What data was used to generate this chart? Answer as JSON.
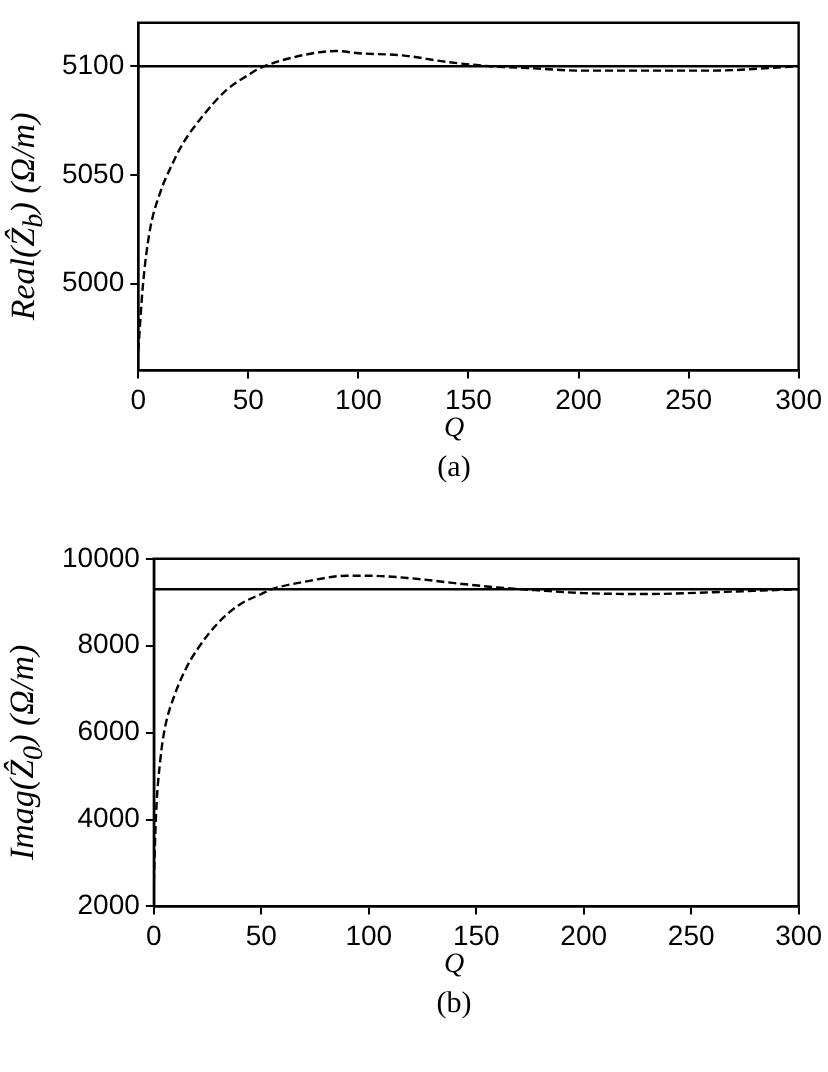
{
  "chart_data": [
    {
      "type": "line",
      "xlabel": "Q",
      "ylabel": "Real(Ẑ$_{b}$)  (Ω/m)",
      "annotations": [
        "(a)"
      ],
      "x": [
        0,
        2,
        5,
        10,
        15,
        20,
        30,
        40,
        50,
        55,
        70,
        90,
        100,
        120,
        140,
        160,
        180,
        200,
        230,
        260,
        300
      ],
      "series": [
        {
          "color": "#000000",
          "line_style": "dashed",
          "values": [
            4969,
            4998,
            5023,
            5042,
            5054,
            5064,
            5078,
            5089,
            5096,
            5099,
            5104,
            5107,
            5106,
            5105,
            5102,
            5100,
            5099,
            5098,
            5098,
            5098,
            5100
          ]
        }
      ],
      "ref_lines": [
        {
          "axis": "y",
          "value": 5100,
          "color": "#000000",
          "line_style": "solid"
        }
      ],
      "xlim": [
        0,
        300
      ],
      "xticks": [
        0,
        50,
        100,
        150,
        200,
        250,
        300
      ],
      "ylim": [
        4960,
        5120
      ],
      "yticks": [
        5000,
        5050,
        5100
      ]
    },
    {
      "type": "line",
      "xlabel": "Q",
      "ylabel": "Imag(Ẑ$_{0}$)  (Ω/m)",
      "annotations": [
        "(b)"
      ],
      "x": [
        0,
        1,
        3,
        5,
        10,
        15,
        20,
        30,
        40,
        50,
        55,
        70,
        90,
        100,
        120,
        140,
        160,
        180,
        200,
        230,
        260,
        300
      ],
      "series": [
        {
          "color": "#000000",
          "line_style": "dashed",
          "values": [
            2560,
            4100,
            5370,
            6070,
            6910,
            7480,
            7900,
            8530,
            8950,
            9190,
            9300,
            9470,
            9610,
            9610,
            9550,
            9440,
            9340,
            9270,
            9210,
            9190,
            9230,
            9300
          ]
        }
      ],
      "ref_lines": [
        {
          "axis": "y",
          "value": 9300,
          "color": "#000000",
          "line_style": "solid"
        }
      ],
      "xlim": [
        0,
        300
      ],
      "xticks": [
        0,
        50,
        100,
        150,
        200,
        250,
        300
      ],
      "ylim": [
        2000,
        10000
      ],
      "yticks": [
        2000,
        4000,
        6000,
        8000,
        10000
      ]
    }
  ]
}
